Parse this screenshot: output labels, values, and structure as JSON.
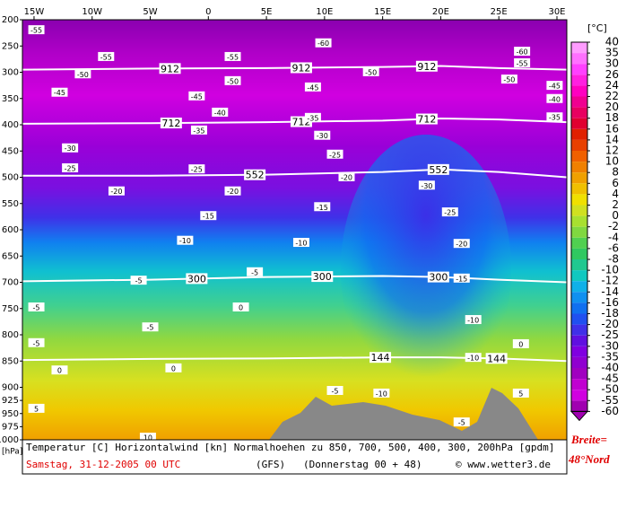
{
  "chart_data": {
    "type": "cross-section",
    "title": "Temperatur [C] Horizontalwind [kn] Normalhoehen zu 850, 700, 500, 400, 300, 200hPa [gpdm]",
    "date": "Samstag, 31-12-2005  00 UTC",
    "model": "(GFS)",
    "run": "(Donnerstag 00 + 48)",
    "credit": "© www.wetter3.de",
    "side_note": [
      "Breite=",
      "48°Nord"
    ],
    "y_unit": "[hPa]",
    "xlim": [
      -16,
      30.85
    ],
    "xticks": [
      {
        "value": -15,
        "label": "15W"
      },
      {
        "value": -10,
        "label": "10W"
      },
      {
        "value": -5,
        "label": "5W"
      },
      0,
      {
        "value": 5,
        "label": "5E"
      },
      {
        "value": 10,
        "label": "10E"
      },
      {
        "value": 15,
        "label": "15E"
      },
      {
        "value": 20,
        "label": "20E"
      },
      {
        "value": 25,
        "label": "25E"
      },
      {
        "value": 30,
        "label": "30E"
      }
    ],
    "ylim": [
      200,
      1000
    ],
    "yticks": [
      200,
      250,
      300,
      350,
      400,
      450,
      500,
      550,
      600,
      650,
      700,
      750,
      800,
      850,
      900,
      925,
      950,
      975,
      1000
    ],
    "contour_lon": [
      -16,
      -5,
      5,
      15,
      20,
      25,
      30.85
    ],
    "height_contours": [
      {
        "value": 912,
        "p": [
          295,
          293,
          292,
          290,
          288,
          292,
          295
        ],
        "label_lon": [
          -3.3,
          8,
          18.8
        ]
      },
      {
        "value": 712,
        "p": [
          398,
          397,
          395,
          392,
          388,
          390,
          395
        ],
        "label_lon": [
          -3.2,
          8,
          18.8
        ]
      },
      {
        "value": 552,
        "p": [
          497,
          497,
          495,
          490,
          485,
          490,
          500
        ],
        "label_lon": [
          4,
          19.8
        ]
      },
      {
        "value": 300,
        "p": [
          698,
          695,
          690,
          688,
          690,
          695,
          700
        ],
        "label_lon": [
          -1,
          9.8,
          19.8
        ]
      },
      {
        "value": 144,
        "p": [
          848,
          846,
          845,
          843,
          843,
          845,
          850
        ],
        "label_lon": [
          14.8,
          24.8
        ]
      }
    ],
    "isotherm_labels": [
      {
        "t": -55,
        "lon": -14.8,
        "p": 219
      },
      {
        "t": -60,
        "lon": 9.9,
        "p": 244
      },
      {
        "t": -55,
        "lon": -8.8,
        "p": 270
      },
      {
        "t": -55,
        "lon": 2.1,
        "p": 270
      },
      {
        "t": -60,
        "lon": 27,
        "p": 260
      },
      {
        "t": -55,
        "lon": 27,
        "p": 282
      },
      {
        "t": -50,
        "lon": -10.8,
        "p": 303
      },
      {
        "t": -50,
        "lon": 2.1,
        "p": 316
      },
      {
        "t": -50,
        "lon": 14,
        "p": 299
      },
      {
        "t": -50,
        "lon": 25.9,
        "p": 313
      },
      {
        "t": -45,
        "lon": -12.8,
        "p": 338
      },
      {
        "t": -45,
        "lon": -1,
        "p": 345
      },
      {
        "t": -45,
        "lon": 9,
        "p": 328
      },
      {
        "t": -45,
        "lon": 29.8,
        "p": 325
      },
      {
        "t": -40,
        "lon": 1,
        "p": 376
      },
      {
        "t": -40,
        "lon": 29.8,
        "p": 350
      },
      {
        "t": -35,
        "lon": -0.8,
        "p": 410
      },
      {
        "t": -35,
        "lon": 9,
        "p": 386
      },
      {
        "t": -35,
        "lon": 29.8,
        "p": 385
      },
      {
        "t": -30,
        "lon": -11.9,
        "p": 444
      },
      {
        "t": -30,
        "lon": 9.8,
        "p": 420
      },
      {
        "t": -30,
        "lon": 18.8,
        "p": 515
      },
      {
        "t": -25,
        "lon": -11.9,
        "p": 482
      },
      {
        "t": -25,
        "lon": -1,
        "p": 484
      },
      {
        "t": -25,
        "lon": 10.9,
        "p": 456
      },
      {
        "t": -25,
        "lon": 20.8,
        "p": 566
      },
      {
        "t": -20,
        "lon": -7.9,
        "p": 526
      },
      {
        "t": -20,
        "lon": 2.1,
        "p": 526
      },
      {
        "t": -20,
        "lon": 11.9,
        "p": 499
      },
      {
        "t": -20,
        "lon": 21.8,
        "p": 626
      },
      {
        "t": -15,
        "lon": 0,
        "p": 573
      },
      {
        "t": -15,
        "lon": 9.8,
        "p": 556
      },
      {
        "t": -15,
        "lon": 21.8,
        "p": 692
      },
      {
        "t": -10,
        "lon": -2,
        "p": 620
      },
      {
        "t": -10,
        "lon": 8,
        "p": 624
      },
      {
        "t": -10,
        "lon": 22.8,
        "p": 771
      },
      {
        "t": -10,
        "lon": 22.8,
        "p": 843
      },
      {
        "t": -10,
        "lon": 14.9,
        "p": 911
      },
      {
        "t": -5,
        "lon": 4,
        "p": 680
      },
      {
        "t": -5,
        "lon": -6,
        "p": 696
      },
      {
        "t": -5,
        "lon": -14.8,
        "p": 747
      },
      {
        "t": -5,
        "lon": -5,
        "p": 785
      },
      {
        "t": -5,
        "lon": -14.8,
        "p": 815
      },
      {
        "t": -5,
        "lon": 10.9,
        "p": 906
      },
      {
        "t": -5,
        "lon": 21.8,
        "p": 966
      },
      {
        "t": 0,
        "lon": 2.8,
        "p": 747
      },
      {
        "t": 0,
        "lon": -3,
        "p": 863
      },
      {
        "t": 0,
        "lon": -12.8,
        "p": 867
      },
      {
        "t": 0,
        "lon": 26.9,
        "p": 817
      },
      {
        "t": 5,
        "lon": -14.8,
        "p": 940
      },
      {
        "t": 5,
        "lon": 26.9,
        "p": 911
      },
      {
        "t": 10,
        "lon": -5.2,
        "p": 995
      }
    ],
    "colorbar": {
      "unit": "[°C]",
      "levels": [
        40,
        35,
        30,
        26,
        24,
        22,
        20,
        18,
        16,
        14,
        12,
        10,
        8,
        6,
        4,
        2,
        0,
        -2,
        -4,
        -6,
        -8,
        -10,
        -12,
        -14,
        -16,
        -18,
        -20,
        -25,
        -30,
        -35,
        -40,
        -45,
        -50,
        -55,
        -60
      ],
      "colors": [
        "#ff9cff",
        "#ff70ff",
        "#ff40ff",
        "#ff20e0",
        "#ff00c0",
        "#f00090",
        "#e80060",
        "#e00030",
        "#e02000",
        "#e84000",
        "#f06000",
        "#f08000",
        "#f0a000",
        "#f0c000",
        "#f0e000",
        "#d0e020",
        "#a8e030",
        "#80d840",
        "#50d050",
        "#30c860",
        "#20c890",
        "#10c8c0",
        "#10b0e8",
        "#1090f0",
        "#1070f0",
        "#2050f0",
        "#4030e8",
        "#6010e0",
        "#8000e0",
        "#9000d0",
        "#a000c0",
        "#c000d0",
        "#d000e0",
        "#a000b0"
      ]
    }
  }
}
